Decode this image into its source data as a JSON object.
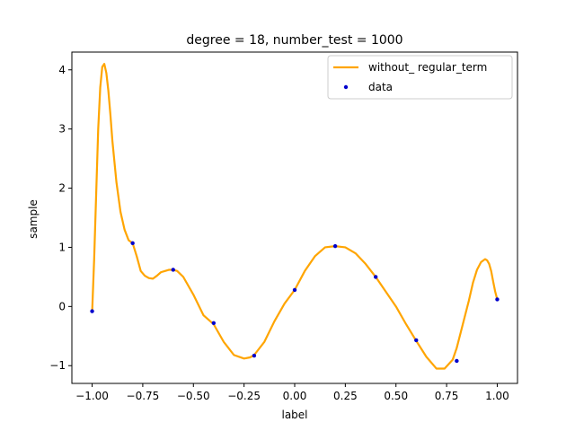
{
  "chart_data": {
    "type": "line",
    "title": "degree = 18, number_test = 1000",
    "xlabel": "label",
    "ylabel": "sample",
    "xlim": [
      -1.1,
      1.1
    ],
    "ylim": [
      -1.3,
      4.3
    ],
    "xticks": [
      -1.0,
      -0.75,
      -0.5,
      -0.25,
      0.0,
      0.25,
      0.5,
      0.75,
      1.0
    ],
    "xtick_labels": [
      "−1.00",
      "−0.75",
      "−0.50",
      "−0.25",
      "0.00",
      "0.25",
      "0.50",
      "0.75",
      "1.00"
    ],
    "yticks": [
      -1,
      0,
      1,
      2,
      3,
      4
    ],
    "ytick_labels": [
      "−1",
      "0",
      "1",
      "2",
      "3",
      "4"
    ],
    "grid": false,
    "legend_position": "top-right",
    "series": [
      {
        "name": "without_ regular_term",
        "kind": "line",
        "color": "#ffa500",
        "x": [
          -1.0,
          -0.99,
          -0.98,
          -0.97,
          -0.96,
          -0.95,
          -0.94,
          -0.93,
          -0.92,
          -0.91,
          -0.9,
          -0.88,
          -0.86,
          -0.84,
          -0.82,
          -0.8,
          -0.78,
          -0.76,
          -0.74,
          -0.72,
          -0.7,
          -0.68,
          -0.66,
          -0.64,
          -0.62,
          -0.6,
          -0.58,
          -0.55,
          -0.5,
          -0.45,
          -0.4,
          -0.35,
          -0.3,
          -0.25,
          -0.22,
          -0.2,
          -0.15,
          -0.1,
          -0.05,
          0.0,
          0.05,
          0.1,
          0.15,
          0.2,
          0.25,
          0.3,
          0.35,
          0.4,
          0.45,
          0.5,
          0.55,
          0.6,
          0.65,
          0.7,
          0.74,
          0.78,
          0.8,
          0.83,
          0.86,
          0.88,
          0.9,
          0.92,
          0.94,
          0.95,
          0.96,
          0.97,
          0.98,
          0.99,
          1.0
        ],
        "y": [
          -0.1,
          0.8,
          1.9,
          3.0,
          3.7,
          4.05,
          4.1,
          3.95,
          3.65,
          3.25,
          2.8,
          2.1,
          1.6,
          1.3,
          1.12,
          1.07,
          0.85,
          0.6,
          0.52,
          0.48,
          0.47,
          0.52,
          0.58,
          0.6,
          0.62,
          0.62,
          0.6,
          0.5,
          0.2,
          -0.15,
          -0.3,
          -0.6,
          -0.82,
          -0.88,
          -0.86,
          -0.82,
          -0.6,
          -0.25,
          0.05,
          0.28,
          0.6,
          0.85,
          1.0,
          1.02,
          1.0,
          0.9,
          0.72,
          0.5,
          0.25,
          0.0,
          -0.3,
          -0.58,
          -0.85,
          -1.05,
          -1.05,
          -0.9,
          -0.7,
          -0.3,
          0.1,
          0.4,
          0.62,
          0.75,
          0.8,
          0.78,
          0.72,
          0.6,
          0.42,
          0.25,
          0.12
        ]
      },
      {
        "name": "data",
        "kind": "scatter",
        "color": "#0000cc",
        "x": [
          -1.0,
          -0.8,
          -0.6,
          -0.4,
          -0.2,
          0.0,
          0.2,
          0.4,
          0.6,
          0.8,
          1.0
        ],
        "y": [
          -0.08,
          1.07,
          0.62,
          -0.28,
          -0.83,
          0.28,
          1.02,
          0.5,
          -0.57,
          -0.92,
          0.12
        ]
      }
    ]
  }
}
